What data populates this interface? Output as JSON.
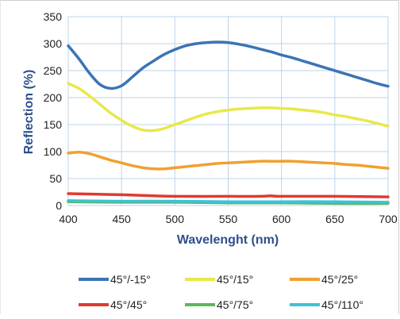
{
  "chart_data": {
    "type": "line",
    "title": "",
    "xlabel": "Wavelenght (nm)",
    "ylabel": "Reflection (%)",
    "xlim": [
      400,
      700
    ],
    "ylim": [
      0,
      350
    ],
    "xticks": [
      400,
      450,
      500,
      550,
      600,
      650,
      700
    ],
    "yticks": [
      0,
      50,
      100,
      150,
      200,
      250,
      300,
      350
    ],
    "grid": true,
    "legend_position": "bottom",
    "series": [
      {
        "name": "45°/-15°",
        "color": "#3a74b5",
        "points": [
          [
            400,
            296
          ],
          [
            410,
            272
          ],
          [
            420,
            245
          ],
          [
            430,
            224
          ],
          [
            440,
            217
          ],
          [
            450,
            222
          ],
          [
            460,
            238
          ],
          [
            470,
            255
          ],
          [
            480,
            268
          ],
          [
            490,
            280
          ],
          [
            500,
            289
          ],
          [
            510,
            296
          ],
          [
            520,
            300
          ],
          [
            530,
            302
          ],
          [
            540,
            303
          ],
          [
            550,
            302
          ],
          [
            560,
            299
          ],
          [
            570,
            295
          ],
          [
            580,
            290
          ],
          [
            590,
            285
          ],
          [
            600,
            279
          ],
          [
            610,
            274
          ],
          [
            620,
            268
          ],
          [
            630,
            262
          ],
          [
            640,
            256
          ],
          [
            650,
            250
          ],
          [
            660,
            244
          ],
          [
            670,
            238
          ],
          [
            680,
            232
          ],
          [
            690,
            226
          ],
          [
            700,
            221
          ]
        ]
      },
      {
        "name": "45°/15°",
        "color": "#e8e84a",
        "points": [
          [
            400,
            226
          ],
          [
            410,
            217
          ],
          [
            420,
            203
          ],
          [
            430,
            187
          ],
          [
            440,
            171
          ],
          [
            450,
            158
          ],
          [
            460,
            147
          ],
          [
            470,
            140
          ],
          [
            480,
            139
          ],
          [
            490,
            143
          ],
          [
            500,
            150
          ],
          [
            510,
            157
          ],
          [
            520,
            164
          ],
          [
            530,
            170
          ],
          [
            540,
            174
          ],
          [
            550,
            177
          ],
          [
            560,
            179
          ],
          [
            570,
            180
          ],
          [
            580,
            181
          ],
          [
            590,
            181
          ],
          [
            600,
            180
          ],
          [
            610,
            179
          ],
          [
            620,
            177
          ],
          [
            630,
            175
          ],
          [
            640,
            172
          ],
          [
            650,
            168
          ],
          [
            660,
            165
          ],
          [
            670,
            161
          ],
          [
            680,
            157
          ],
          [
            690,
            152
          ],
          [
            700,
            147
          ]
        ]
      },
      {
        "name": "45°/25°",
        "color": "#f0a030",
        "points": [
          [
            400,
            97
          ],
          [
            410,
            99
          ],
          [
            420,
            96
          ],
          [
            430,
            90
          ],
          [
            440,
            84
          ],
          [
            450,
            79
          ],
          [
            460,
            74
          ],
          [
            470,
            70
          ],
          [
            480,
            68
          ],
          [
            490,
            68
          ],
          [
            500,
            70
          ],
          [
            510,
            72
          ],
          [
            520,
            74
          ],
          [
            530,
            76
          ],
          [
            540,
            78
          ],
          [
            550,
            79
          ],
          [
            560,
            80
          ],
          [
            570,
            81
          ],
          [
            580,
            82
          ],
          [
            590,
            82
          ],
          [
            600,
            82
          ],
          [
            610,
            82
          ],
          [
            620,
            81
          ],
          [
            630,
            80
          ],
          [
            640,
            79
          ],
          [
            650,
            78
          ],
          [
            660,
            76
          ],
          [
            670,
            75
          ],
          [
            680,
            73
          ],
          [
            690,
            71
          ],
          [
            700,
            69
          ]
        ]
      },
      {
        "name": "45°/45°",
        "color": "#e03a2e",
        "points": [
          [
            400,
            22
          ],
          [
            450,
            20
          ],
          [
            480,
            18
          ],
          [
            500,
            17
          ],
          [
            550,
            17
          ],
          [
            580,
            17
          ],
          [
            590,
            18
          ],
          [
            600,
            17
          ],
          [
            650,
            17
          ],
          [
            700,
            16
          ]
        ]
      },
      {
        "name": "45°/75°",
        "color": "#5cb85c",
        "points": [
          [
            400,
            7
          ],
          [
            450,
            6
          ],
          [
            500,
            6
          ],
          [
            550,
            5
          ],
          [
            600,
            5
          ],
          [
            650,
            4
          ],
          [
            700,
            4
          ]
        ]
      },
      {
        "name": "45°/110°",
        "color": "#3fc1d6",
        "points": [
          [
            400,
            9
          ],
          [
            450,
            8
          ],
          [
            500,
            8
          ],
          [
            550,
            7
          ],
          [
            600,
            7
          ],
          [
            650,
            7
          ],
          [
            700,
            6
          ]
        ]
      }
    ]
  }
}
